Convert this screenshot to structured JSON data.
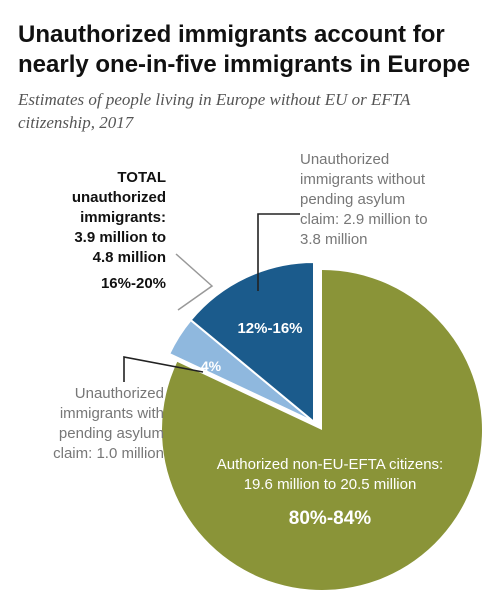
{
  "title_lines": [
    "Unauthorized immigrants account for",
    "nearly one-in-five immigrants in Europe"
  ],
  "subtitle_lines": [
    "Estimates of people living in Europe without EU or EFTA",
    "citizenship, 2017"
  ],
  "annotations": {
    "total_lines": [
      "TOTAL",
      "unauthorized",
      "immigrants:",
      "3.9 million to",
      "4.8 million"
    ],
    "total_pct": "16%-20%",
    "without_asylum_lines": [
      "Unauthorized",
      "immigrants without",
      "pending asylum",
      "claim: 2.9 million to",
      "3.8 million"
    ],
    "with_asylum_lines": [
      "Unauthorized",
      "immigrants with",
      "pending asylum",
      "claim: 1.0 million"
    ]
  },
  "colors": {
    "authorized": "#8a9438",
    "without_asylum": "#1b5b8c",
    "with_asylum": "#8fb8de",
    "leader": "#222222"
  },
  "chart_data": {
    "type": "pie",
    "slices": [
      {
        "key": "authorized",
        "label_lines": [
          "Authorized non-EU-EFTA citizens:",
          "19.6 million to 20.5 million"
        ],
        "pct_label": "80%-84%",
        "value": 82
      },
      {
        "key": "with_asylum",
        "pct_label": "4%",
        "value": 4
      },
      {
        "key": "without_asylum",
        "pct_label": "12%-16%",
        "value": 14
      }
    ]
  }
}
